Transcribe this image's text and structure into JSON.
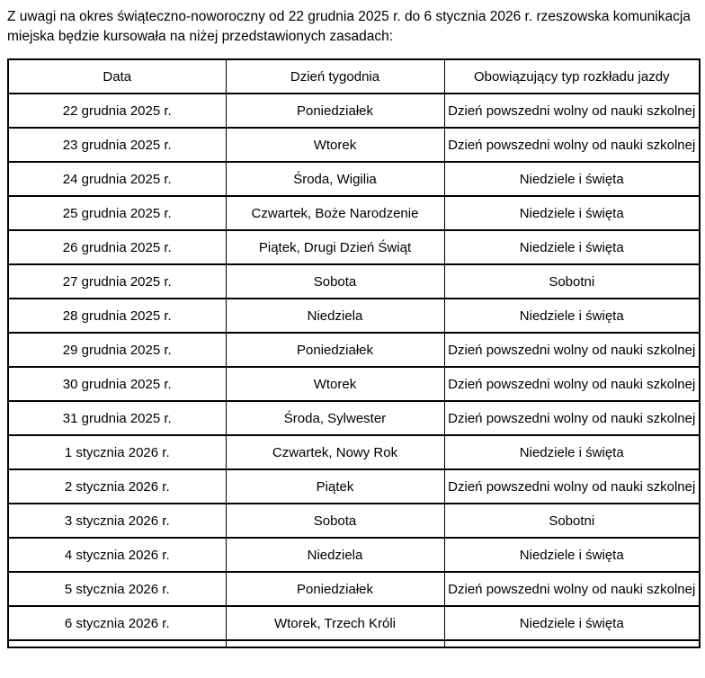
{
  "intro_text": "Z uwagi na okres świąteczno-noworoczny od 22 grudnia 2025 r. do 6 stycznia 2026 r. rzeszowska komunikacja miejska będzie kursowała na niżej przedstawionych zasadach:",
  "table": {
    "headers": [
      "Data",
      "Dzień tygodnia",
      "Obowiązujący typ rozkładu jazdy"
    ],
    "rows": [
      [
        "22 grudnia 2025 r.",
        "Poniedziałek",
        "Dzień powszedni wolny od nauki szkolnej"
      ],
      [
        "23 grudnia 2025 r.",
        "Wtorek",
        "Dzień powszedni wolny od nauki szkolnej"
      ],
      [
        "24 grudnia 2025 r.",
        "Środa, Wigilia",
        "Niedziele i święta"
      ],
      [
        "25 grudnia 2025 r.",
        "Czwartek, Boże Narodzenie",
        "Niedziele i święta"
      ],
      [
        "26 grudnia 2025 r.",
        "Piątek, Drugi Dzień Świąt",
        "Niedziele i święta"
      ],
      [
        "27 grudnia 2025 r.",
        "Sobota",
        "Sobotni"
      ],
      [
        "28 grudnia 2025 r.",
        "Niedziela",
        "Niedziele i święta"
      ],
      [
        "29 grudnia 2025 r.",
        "Poniedziałek",
        "Dzień powszedni wolny od nauki szkolnej"
      ],
      [
        "30 grudnia 2025 r.",
        "Wtorek",
        "Dzień powszedni wolny od nauki szkolnej"
      ],
      [
        "31 grudnia 2025 r.",
        "Środa, Sylwester",
        "Dzień powszedni wolny od nauki szkolnej"
      ],
      [
        "1 stycznia 2026 r.",
        "Czwartek, Nowy Rok",
        "Niedziele i święta"
      ],
      [
        "2 stycznia 2026 r.",
        "Piątek",
        "Dzień powszedni wolny od nauki szkolnej"
      ],
      [
        "3 stycznia 2026 r.",
        "Sobota",
        "Sobotni"
      ],
      [
        "4 stycznia 2026 r.",
        "Niedziela",
        "Niedziele i święta"
      ],
      [
        "5 stycznia 2026 r.",
        "Poniedziałek",
        "Dzień powszedni wolny od nauki szkolnej"
      ],
      [
        "6 stycznia 2026 r.",
        "Wtorek, Trzech Króli",
        "Niedziele i święta"
      ]
    ]
  }
}
